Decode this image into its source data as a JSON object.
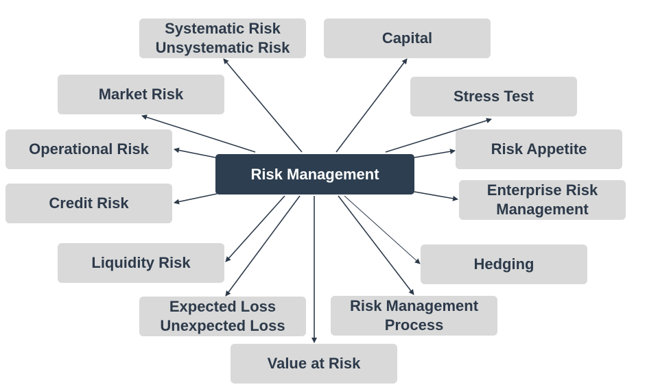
{
  "colors": {
    "center_bg": "#2d3e50",
    "center_text": "#ffffff",
    "node_bg": "#d9d9d9",
    "node_text": "#2d3a4a",
    "arrow": "#2d3a4a"
  },
  "center": {
    "label": "Risk Management"
  },
  "nodes": [
    {
      "id": "systematic",
      "label": "Systematic Risk\nUnsystematic Risk"
    },
    {
      "id": "capital",
      "label": "Capital"
    },
    {
      "id": "market",
      "label": "Market Risk"
    },
    {
      "id": "stress",
      "label": "Stress Test"
    },
    {
      "id": "operational",
      "label": "Operational Risk"
    },
    {
      "id": "appetite",
      "label": "Risk Appetite"
    },
    {
      "id": "credit",
      "label": "Credit Risk"
    },
    {
      "id": "erm",
      "label": "Enterprise Risk\nManagement"
    },
    {
      "id": "liquidity",
      "label": "Liquidity Risk"
    },
    {
      "id": "hedging",
      "label": "Hedging"
    },
    {
      "id": "loss",
      "label": "Expected Loss\nUnexpected Loss"
    },
    {
      "id": "process",
      "label": "Risk Management\nProcess"
    },
    {
      "id": "var",
      "label": "Value at Risk"
    }
  ]
}
